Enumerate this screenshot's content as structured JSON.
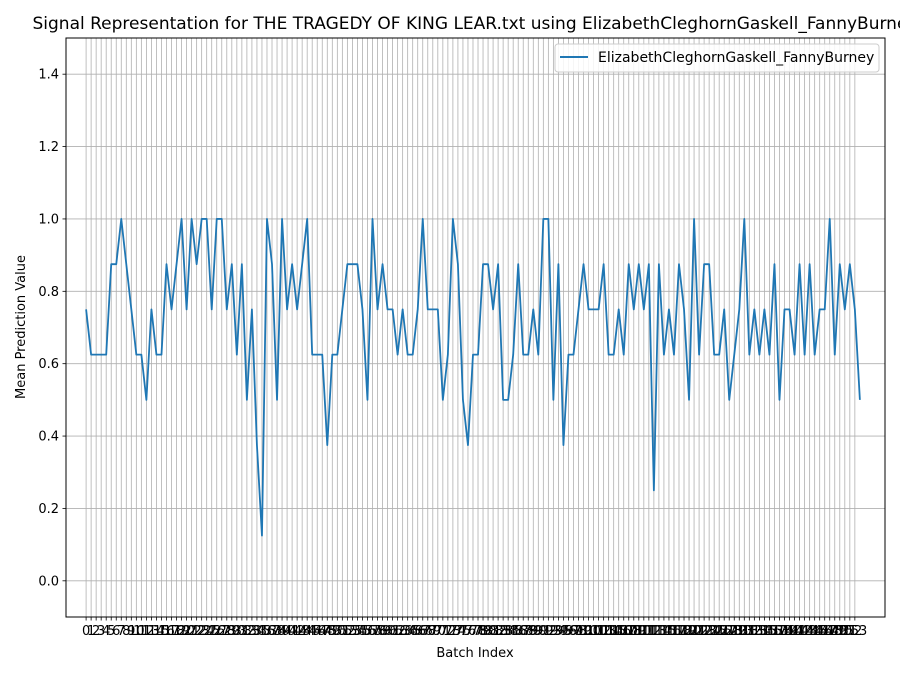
{
  "chart_data": {
    "type": "line",
    "title": "Signal Representation for THE TRAGEDY OF KING LEAR.txt using ElizabethCleghornGaskell_FannyBurney",
    "xlabel": "Batch Index",
    "ylabel": "Mean Prediction Value",
    "xlim": [
      -4,
      159
    ],
    "ylim": [
      -0.1,
      1.5
    ],
    "yticks": [
      "0.0",
      "0.2",
      "0.4",
      "0.6",
      "0.8",
      "1.0",
      "1.2",
      "1.4"
    ],
    "x_tick_count": 154,
    "grid": true,
    "legend_position": "top-right",
    "series": [
      {
        "name": "ElizabethCleghornGaskell_FannyBurney",
        "color": "#1f77b4",
        "values": [
          0.75,
          0.625,
          0.625,
          0.625,
          0.625,
          0.875,
          0.875,
          1.0,
          0.875,
          0.75,
          0.625,
          0.625,
          0.5,
          0.75,
          0.625,
          0.625,
          0.875,
          0.75,
          0.875,
          1.0,
          0.75,
          1.0,
          0.875,
          1.0,
          1.0,
          0.75,
          1.0,
          1.0,
          0.75,
          0.875,
          0.625,
          0.875,
          0.5,
          0.75,
          0.375,
          0.125,
          1.0,
          0.875,
          0.5,
          1.0,
          0.75,
          0.875,
          0.75,
          0.875,
          1.0,
          0.625,
          0.625,
          0.625,
          0.375,
          0.625,
          0.625,
          0.75,
          0.875,
          0.875,
          0.875,
          0.75,
          0.5,
          1.0,
          0.75,
          0.875,
          0.75,
          0.75,
          0.625,
          0.75,
          0.625,
          0.625,
          0.75,
          1.0,
          0.75,
          0.75,
          0.75,
          0.5,
          0.625,
          1.0,
          0.875,
          0.5,
          0.375,
          0.625,
          0.625,
          0.875,
          0.875,
          0.75,
          0.875,
          0.5,
          0.5,
          0.625,
          0.875,
          0.625,
          0.625,
          0.75,
          0.625,
          1.0,
          1.0,
          0.5,
          0.875,
          0.375,
          0.625,
          0.625,
          0.75,
          0.875,
          0.75,
          0.75,
          0.75,
          0.875,
          0.625,
          0.625,
          0.75,
          0.625,
          0.875,
          0.75,
          0.875,
          0.75,
          0.875,
          0.25,
          0.875,
          0.625,
          0.75,
          0.625,
          0.875,
          0.75,
          0.5,
          1.0,
          0.625,
          0.875,
          0.875,
          0.625,
          0.625,
          0.75,
          0.5,
          0.625,
          0.75,
          1.0,
          0.625,
          0.75,
          0.625,
          0.75,
          0.625,
          0.875,
          0.5,
          0.75,
          0.75,
          0.625,
          0.875,
          0.625,
          0.875,
          0.625,
          0.75,
          0.75,
          1.0,
          0.625,
          0.875,
          0.75,
          0.875,
          0.75,
          0.5
        ]
      }
    ]
  }
}
